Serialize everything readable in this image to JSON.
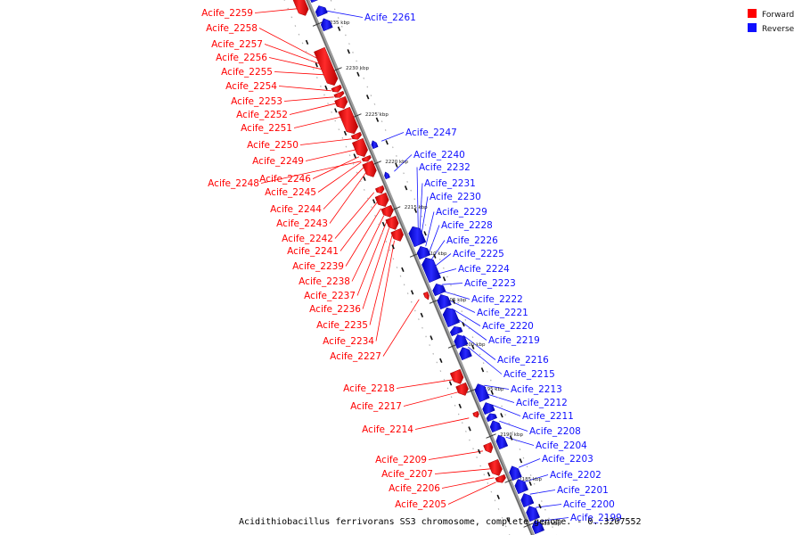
{
  "caption": "Acidithiobacillus ferrivorans SS3 chromosome, complete genome. - 0..3207552",
  "colors": {
    "forward": "#ff0000",
    "reverse": "#1010ff",
    "backbone": "#808080"
  },
  "legend": [
    {
      "label": "Forward",
      "color": "#ff0000"
    },
    {
      "label": "Reverse",
      "color": "#1010ff"
    }
  ],
  "ticks": [
    {
      "label": "2235 kbp"
    },
    {
      "label": "2230 kbp"
    },
    {
      "label": "2225 kbp"
    },
    {
      "label": "2220 kbp"
    },
    {
      "label": "2215 kbp"
    },
    {
      "label": "2210 kbp"
    },
    {
      "label": "2205 kbp"
    },
    {
      "label": "2200 kbp"
    },
    {
      "label": "2195 kbp"
    },
    {
      "label": "2190 kbp"
    },
    {
      "label": "2185 kbp"
    },
    {
      "label": "2180 kbp"
    }
  ],
  "forward_genes": [
    {
      "name": "Acife_2259"
    },
    {
      "name": "Acife_2258"
    },
    {
      "name": "Acife_2257"
    },
    {
      "name": "Acife_2256"
    },
    {
      "name": "Acife_2255"
    },
    {
      "name": "Acife_2254"
    },
    {
      "name": "Acife_2253"
    },
    {
      "name": "Acife_2252"
    },
    {
      "name": "Acife_2251"
    },
    {
      "name": "Acife_2250"
    },
    {
      "name": "Acife_2249"
    },
    {
      "name": "Acife_2246"
    },
    {
      "name": "Acife_2248"
    },
    {
      "name": "Acife_2245"
    },
    {
      "name": "Acife_2244"
    },
    {
      "name": "Acife_2243"
    },
    {
      "name": "Acife_2242"
    },
    {
      "name": "Acife_2241"
    },
    {
      "name": "Acife_2239"
    },
    {
      "name": "Acife_2238"
    },
    {
      "name": "Acife_2237"
    },
    {
      "name": "Acife_2236"
    },
    {
      "name": "Acife_2235"
    },
    {
      "name": "Acife_2234"
    },
    {
      "name": "Acife_2227"
    },
    {
      "name": "Acife_2218"
    },
    {
      "name": "Acife_2217"
    },
    {
      "name": "Acife_2214"
    },
    {
      "name": "Acife_2209"
    },
    {
      "name": "Acife_2207"
    },
    {
      "name": "Acife_2206"
    },
    {
      "name": "Acife_2205"
    }
  ],
  "reverse_genes": [
    {
      "name": "Acife_2261"
    },
    {
      "name": "Acife_2247"
    },
    {
      "name": "Acife_2240"
    },
    {
      "name": "Acife_2232"
    },
    {
      "name": "Acife_2231"
    },
    {
      "name": "Acife_2230"
    },
    {
      "name": "Acife_2229"
    },
    {
      "name": "Acife_2228"
    },
    {
      "name": "Acife_2226"
    },
    {
      "name": "Acife_2225"
    },
    {
      "name": "Acife_2224"
    },
    {
      "name": "Acife_2223"
    },
    {
      "name": "Acife_2222"
    },
    {
      "name": "Acife_2221"
    },
    {
      "name": "Acife_2220"
    },
    {
      "name": "Acife_2219"
    },
    {
      "name": "Acife_2216"
    },
    {
      "name": "Acife_2215"
    },
    {
      "name": "Acife_2213"
    },
    {
      "name": "Acife_2212"
    },
    {
      "name": "Acife_2211"
    },
    {
      "name": "Acife_2208"
    },
    {
      "name": "Acife_2204"
    },
    {
      "name": "Acife_2203"
    },
    {
      "name": "Acife_2202"
    },
    {
      "name": "Acife_2201"
    },
    {
      "name": "Acife_2200"
    },
    {
      "name": "Acife_2199"
    }
  ]
}
